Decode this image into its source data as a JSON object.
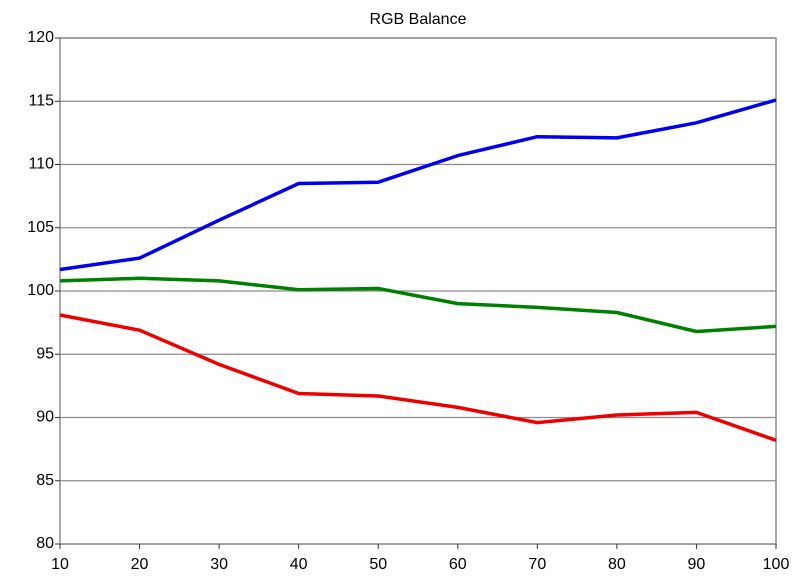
{
  "chart_data": {
    "type": "line",
    "title": "RGB Balance",
    "x": [
      10,
      20,
      30,
      40,
      50,
      60,
      70,
      80,
      90,
      100
    ],
    "series": [
      {
        "color": "#0000ee",
        "values": [
          101.7,
          102.6,
          105.6,
          108.5,
          108.6,
          110.7,
          112.2,
          112.1,
          113.3,
          115.1
        ]
      },
      {
        "color": "#008000",
        "values": [
          100.8,
          101.0,
          100.8,
          100.1,
          100.2,
          99.0,
          98.7,
          98.3,
          96.8,
          97.2
        ]
      },
      {
        "color": "#ee0000",
        "values": [
          98.1,
          96.9,
          94.2,
          91.9,
          91.7,
          90.8,
          89.6,
          90.2,
          90.4,
          88.2
        ]
      }
    ],
    "xlim": [
      10,
      100
    ],
    "xticks": [
      10,
      20,
      30,
      40,
      50,
      60,
      70,
      80,
      90,
      100
    ],
    "ylim": [
      80,
      120
    ],
    "yticks": [
      80,
      85,
      90,
      95,
      100,
      105,
      110,
      115,
      120
    ],
    "grid": true
  }
}
